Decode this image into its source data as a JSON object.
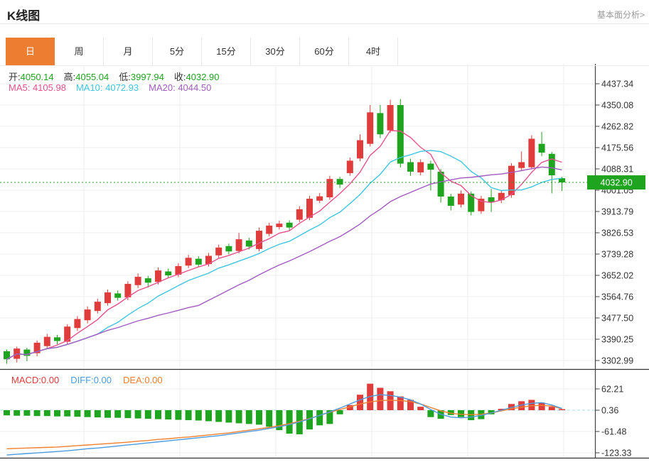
{
  "header": {
    "title": "K线图",
    "link": "基本面分析>"
  },
  "tabs": {
    "items": [
      {
        "label": "日",
        "active": true
      },
      {
        "label": "周",
        "active": false
      },
      {
        "label": "月",
        "active": false
      },
      {
        "label": "5分",
        "active": false
      },
      {
        "label": "15分",
        "active": false
      },
      {
        "label": "30分",
        "active": false
      },
      {
        "label": "60分",
        "active": false
      },
      {
        "label": "4时",
        "active": false
      }
    ]
  },
  "legend": {
    "open_label": "开:",
    "open_value": "4050.14",
    "high_label": "高:",
    "high_value": "4055.04",
    "low_label": "低:",
    "low_value": "3997.94",
    "close_label": "收:",
    "close_value": "4032.90",
    "ma5": "MA5: 4105.98",
    "ma10": "MA10: 4072.93",
    "ma20": "MA20: 4044.50"
  },
  "macd_legend": {
    "macd": "MACD:0.00",
    "diff": "DIFF:0.00",
    "dea": "DEA:0.00"
  },
  "colors": {
    "up": "#E03C3C",
    "down": "#1FA41F",
    "ma5": "#E8508C",
    "ma10": "#3EC6E0",
    "ma20": "#A15CC0",
    "diff": "#4B9BE1",
    "dea": "#F08030",
    "accent_tab": "#ED7D31",
    "price_flag_bg": "#1FA41F",
    "grid": "#efefef",
    "axis": "#444444"
  },
  "chart_data": {
    "type": "candlestick",
    "title": "K线图 (日)",
    "legend_position": "top-left",
    "grid": true,
    "main_panel": {
      "y_tick_labels": [
        "4437.34",
        "4350.08",
        "4262.82",
        "4175.56",
        "4088.31",
        "4001.05",
        "3913.79",
        "3826.53",
        "3739.28",
        "3652.02",
        "3564.76",
        "3477.50",
        "3390.25",
        "3302.99"
      ],
      "y_range": [
        3302.99,
        4437.34
      ],
      "current_price": 4032.9,
      "current_price_label": "4032.90",
      "last_bar_ohlc": {
        "open": 4050.14,
        "high": 4055.04,
        "low": 3997.94,
        "close": 4032.9
      },
      "ma_values": {
        "ma5": 4105.98,
        "ma10": 4072.93,
        "ma20": 4044.5
      },
      "candles_ohlc_order": [
        "open",
        "close",
        "low",
        "high"
      ],
      "candles": [
        [
          3341,
          3308,
          3290,
          3348
        ],
        [
          3310,
          3352,
          3295,
          3360
        ],
        [
          3348,
          3322,
          3300,
          3355
        ],
        [
          3333,
          3376,
          3320,
          3385
        ],
        [
          3362,
          3400,
          3350,
          3412
        ],
        [
          3398,
          3383,
          3370,
          3408
        ],
        [
          3380,
          3442,
          3368,
          3452
        ],
        [
          3436,
          3473,
          3424,
          3485
        ],
        [
          3468,
          3512,
          3455,
          3525
        ],
        [
          3506,
          3544,
          3496,
          3556
        ],
        [
          3538,
          3582,
          3528,
          3594
        ],
        [
          3578,
          3560,
          3548,
          3590
        ],
        [
          3562,
          3617,
          3550,
          3628
        ],
        [
          3612,
          3646,
          3600,
          3660
        ],
        [
          3640,
          3622,
          3602,
          3650
        ],
        [
          3625,
          3672,
          3615,
          3684
        ],
        [
          3668,
          3652,
          3640,
          3680
        ],
        [
          3655,
          3690,
          3645,
          3702
        ],
        [
          3692,
          3724,
          3682,
          3736
        ],
        [
          3720,
          3696,
          3686,
          3730
        ],
        [
          3698,
          3732,
          3688,
          3744
        ],
        [
          3734,
          3766,
          3724,
          3778
        ],
        [
          3772,
          3750,
          3738,
          3782
        ],
        [
          3752,
          3800,
          3742,
          3826
        ],
        [
          3795,
          3770,
          3758,
          3806
        ],
        [
          3760,
          3835,
          3750,
          3848
        ],
        [
          3822,
          3856,
          3812,
          3868
        ],
        [
          3850,
          3864,
          3840,
          3876
        ],
        [
          3868,
          3848,
          3836,
          3878
        ],
        [
          3880,
          3923,
          3870,
          3936
        ],
        [
          3888,
          3966,
          3878,
          3978
        ],
        [
          3958,
          3976,
          3948,
          3990
        ],
        [
          3972,
          4047,
          3962,
          4060
        ],
        [
          4047,
          4024,
          4010,
          4056
        ],
        [
          4071,
          4122,
          4060,
          4135
        ],
        [
          4131,
          4206,
          4120,
          4230
        ],
        [
          4191,
          4320,
          4180,
          4350
        ],
        [
          4317,
          4230,
          4214,
          4350
        ],
        [
          4246,
          4350,
          4236,
          4372
        ],
        [
          4350,
          4110,
          4094,
          4375
        ],
        [
          4116,
          4077,
          4060,
          4130
        ],
        [
          4074,
          4116,
          4062,
          4128
        ],
        [
          4110,
          4085,
          4000,
          4122
        ],
        [
          4077,
          3975,
          3950,
          4088
        ],
        [
          3975,
          3937,
          3918,
          3986
        ],
        [
          3942,
          3987,
          3930,
          4000
        ],
        [
          3987,
          3912,
          3898,
          3996
        ],
        [
          3915,
          3966,
          3904,
          3978
        ],
        [
          3972,
          3951,
          3912,
          4006
        ],
        [
          3960,
          3990,
          3948,
          4002
        ],
        [
          3981,
          4101,
          3970,
          4112
        ],
        [
          4092,
          4116,
          4082,
          4160
        ],
        [
          4095,
          4212,
          4086,
          4226
        ],
        [
          4191,
          4155,
          4140,
          4240
        ],
        [
          4150,
          4062,
          3988,
          4158
        ],
        [
          4050.14,
          4032.9,
          3997.94,
          4055.04
        ]
      ]
    },
    "macd_panel": {
      "y_tick_labels": [
        "62.21",
        "0.36",
        "-61.48",
        "-123.33"
      ],
      "macd": 0.0,
      "diff": 0.0,
      "dea": 0.0,
      "hist": [
        -15,
        -16,
        -16,
        -17,
        -17,
        -18,
        -18,
        -19,
        -20,
        -21,
        -22,
        -22,
        -23,
        -24,
        -25,
        -26,
        -27,
        -28,
        -29,
        -30,
        -32,
        -34,
        -36,
        -38,
        -40,
        -42,
        -48,
        -58,
        -68,
        -70,
        -56,
        -44,
        -40,
        -12,
        15,
        45,
        77,
        65,
        55,
        40,
        30,
        10,
        -20,
        -25,
        -14,
        -20,
        -29,
        -26,
        -12,
        4,
        18,
        26,
        30,
        22,
        10,
        3
      ],
      "diff_line": [
        -130,
        -128,
        -126,
        -124,
        -122,
        -120,
        -118,
        -115,
        -112,
        -110,
        -107,
        -104,
        -101,
        -98,
        -95,
        -92,
        -89,
        -86,
        -83,
        -80,
        -77,
        -74,
        -70,
        -66,
        -62,
        -58,
        -53,
        -48,
        -42,
        -34,
        -25,
        -15,
        -5,
        6,
        18,
        30,
        40,
        45,
        43,
        38,
        30,
        18,
        2,
        -12,
        -20,
        -22,
        -20,
        -15,
        -8,
        0,
        8,
        15,
        20,
        22,
        15,
        5
      ],
      "dea_line": [
        -112,
        -111,
        -110,
        -109,
        -108,
        -107,
        -105,
        -103,
        -101,
        -99,
        -97,
        -95,
        -93,
        -90,
        -88,
        -85,
        -83,
        -80,
        -78,
        -75,
        -72,
        -69,
        -66,
        -62,
        -58,
        -54,
        -50,
        -45,
        -39,
        -32,
        -24,
        -15,
        -6,
        2,
        10,
        18,
        24,
        28,
        29,
        28,
        25,
        18,
        8,
        -2,
        -9,
        -12,
        -13,
        -12,
        -8,
        -2,
        4,
        9,
        13,
        14,
        12,
        4
      ]
    }
  }
}
